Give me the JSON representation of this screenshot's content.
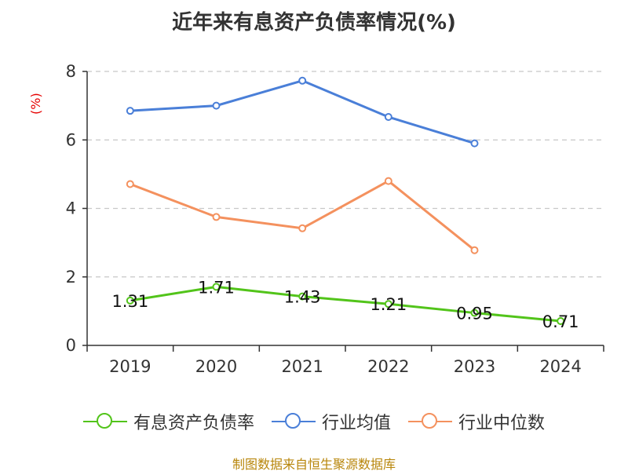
{
  "chart_data": {
    "type": "line",
    "title": "近年来有息资产负债率情况(%)",
    "ylabel": "(%)",
    "xlabel": "",
    "categories": [
      "2019",
      "2020",
      "2021",
      "2022",
      "2023",
      "2024"
    ],
    "ylim": [
      0,
      8
    ],
    "yticks": [
      0,
      2,
      4,
      6,
      8
    ],
    "grid": true,
    "legend_position": "bottom",
    "series": [
      {
        "name": "有息资产负债率",
        "color": "#52c41a",
        "values": [
          1.31,
          1.71,
          1.43,
          1.21,
          0.95,
          0.71
        ],
        "labels": [
          "1.31",
          "1.71",
          "1.43",
          "1.21",
          "0.95",
          "0.71"
        ]
      },
      {
        "name": "行业均值",
        "color": "#4a7fd8",
        "values": [
          6.85,
          7.0,
          7.73,
          6.67,
          5.9,
          null
        ]
      },
      {
        "name": "行业中位数",
        "color": "#f4915e",
        "values": [
          4.71,
          3.75,
          3.42,
          4.8,
          2.78,
          null
        ]
      }
    ]
  },
  "footer": {
    "source": "制图数据来自恒生聚源数据库"
  }
}
